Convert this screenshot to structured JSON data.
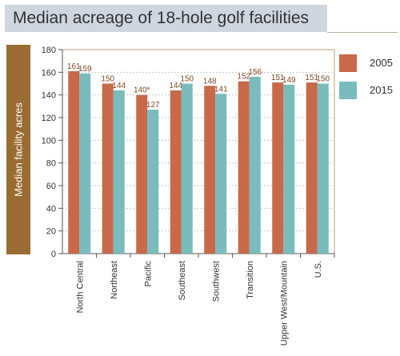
{
  "header": {
    "title": "Median acreage of 18-hole golf facilities"
  },
  "chart_data": {
    "type": "bar",
    "title": "Median acreage of 18-hole golf facilities",
    "xlabel": "",
    "ylabel": "Median facility acres",
    "ylim": [
      0,
      180
    ],
    "yticks": [
      0,
      20,
      40,
      60,
      80,
      100,
      120,
      140,
      160,
      180
    ],
    "grid": true,
    "legend_position": "right",
    "categories": [
      "North Central",
      "Northeast",
      "Pacific",
      "Southeast",
      "Southwest",
      "Transition",
      "Upper West/Mountain",
      "U.S."
    ],
    "series": [
      {
        "name": "2005",
        "color": "#c8694a",
        "values": [
          161,
          150,
          140,
          144,
          148,
          152,
          151,
          151
        ],
        "labels": [
          "161",
          "150",
          "140*",
          "144",
          "148",
          "152",
          "151",
          "151"
        ]
      },
      {
        "name": "2015",
        "color": "#7abcbc",
        "values": [
          159,
          144,
          127,
          150,
          141,
          156,
          149,
          150
        ],
        "labels": [
          "159",
          "144",
          "127",
          "150",
          "141",
          "156",
          "149",
          "150"
        ]
      }
    ]
  }
}
